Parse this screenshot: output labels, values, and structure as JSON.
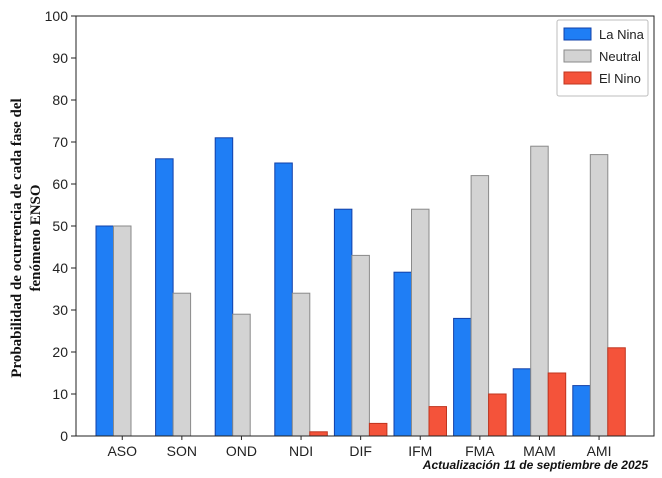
{
  "chart_data": {
    "type": "bar",
    "categories": [
      "ASO",
      "SON",
      "OND",
      "NDI",
      "DIF",
      "IFM",
      "FMA",
      "MAM",
      "AMI"
    ],
    "series": [
      {
        "name": "La Nina",
        "color": "#1f7ef5",
        "edge": "#1240a8",
        "values": [
          50,
          66,
          71,
          65,
          54,
          39,
          28,
          16,
          12
        ]
      },
      {
        "name": "Neutral",
        "color": "#d3d3d3",
        "edge": "#8a8a8a",
        "values": [
          50,
          34,
          29,
          34,
          43,
          54,
          62,
          69,
          67
        ]
      },
      {
        "name": "El Nino",
        "color": "#f4533a",
        "edge": "#c0341e",
        "values": [
          0,
          0,
          0,
          1,
          3,
          7,
          10,
          15,
          21
        ]
      }
    ],
    "yticks": [
      "0",
      "10",
      "20",
      "30",
      "40",
      "50",
      "60",
      "70",
      "80",
      "90",
      "100"
    ],
    "ylim": [
      0,
      100
    ],
    "ylabel_line1": "Probabilidad de ocurrencia  de cada fase del",
    "ylabel_line2": "fenómeno ENSO",
    "legend_position": "top-right",
    "grid": false
  },
  "footnote": "Actualización 11 de septiembre de 2025"
}
